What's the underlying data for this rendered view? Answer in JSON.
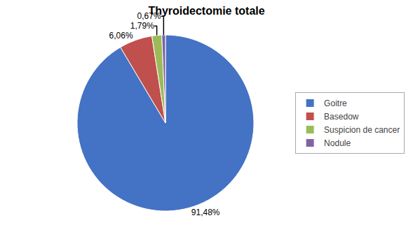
{
  "chart_data": {
    "type": "pie",
    "title": "Thyroidectomie totale",
    "categories": [
      "Goitre",
      "Basedow",
      "Suspicion de cancer",
      "Nodule"
    ],
    "values": [
      91.48,
      6.06,
      1.79,
      0.67
    ],
    "value_labels": [
      "91,48%",
      "6,06%",
      "1,79%",
      "0,67%"
    ],
    "colors": [
      "#4472C4",
      "#C0504D",
      "#9BBB59",
      "#8064A2"
    ],
    "data_labels": true,
    "legend": "right"
  }
}
